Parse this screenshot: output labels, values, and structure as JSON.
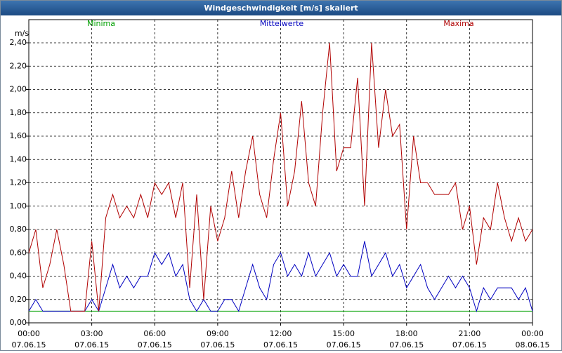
{
  "chart_data": {
    "type": "line",
    "title": "Windgeschwindigkeit [m/s] skaliert",
    "y_label": "m/s",
    "x": [
      0,
      20,
      40,
      60,
      80,
      100,
      120,
      140,
      160,
      180,
      200,
      220,
      240,
      260,
      280,
      300,
      320,
      340,
      360,
      380,
      400,
      420,
      440,
      460,
      480,
      500,
      520,
      540,
      560,
      580,
      600,
      620,
      640,
      660,
      680,
      700,
      720,
      740,
      760,
      780,
      800,
      820,
      840,
      860,
      880,
      900,
      920,
      940,
      960,
      980,
      1000,
      1020,
      1040,
      1060,
      1080,
      1100,
      1120,
      1140,
      1160,
      1180,
      1200,
      1220,
      1240,
      1260,
      1280,
      1300,
      1320,
      1340,
      1360,
      1380,
      1400,
      1420,
      1440
    ],
    "xlim": [
      0,
      1440
    ],
    "xticks": [
      {
        "value": 0,
        "label": "00:00"
      },
      {
        "value": 180,
        "label": "03:00"
      },
      {
        "value": 360,
        "label": "06:00"
      },
      {
        "value": 540,
        "label": "09:00"
      },
      {
        "value": 720,
        "label": "12:00"
      },
      {
        "value": 900,
        "label": "15:00"
      },
      {
        "value": 1080,
        "label": "18:00"
      },
      {
        "value": 1260,
        "label": "21:00"
      },
      {
        "value": 1440,
        "label": "00:00"
      }
    ],
    "xtick_dates": [
      "07.06.15",
      "07.06.15",
      "07.06.15",
      "07.06.15",
      "07.06.15",
      "07.06.15",
      "07.06.15",
      "07.06.15",
      "08.06.15"
    ],
    "ylim": [
      0,
      2.4
    ],
    "yticks": [
      {
        "value": 0,
        "label": "0,00"
      },
      {
        "value": 0.2,
        "label": "0,20"
      },
      {
        "value": 0.4,
        "label": "0,40"
      },
      {
        "value": 0.6,
        "label": "0,60"
      },
      {
        "value": 0.8,
        "label": "0,80"
      },
      {
        "value": 1.0,
        "label": "1,00"
      },
      {
        "value": 1.2,
        "label": "1,20"
      },
      {
        "value": 1.4,
        "label": "1,40"
      },
      {
        "value": 1.6,
        "label": "1,60"
      },
      {
        "value": 1.8,
        "label": "1,80"
      },
      {
        "value": 2.0,
        "label": "2,00"
      },
      {
        "value": 2.2,
        "label": "2,20"
      },
      {
        "value": 2.4,
        "label": "2,40"
      }
    ],
    "grid": true,
    "series": [
      {
        "name": "Minima",
        "color": "#00a000",
        "values": [
          0.1,
          0.1,
          0.1,
          0.1,
          0.1,
          0.1,
          0.1,
          0.1,
          0.1,
          0.1,
          0.1,
          0.1,
          0.1,
          0.1,
          0.1,
          0.1,
          0.1,
          0.1,
          0.1,
          0.1,
          0.1,
          0.1,
          0.1,
          0.1,
          0.1,
          0.1,
          0.1,
          0.1,
          0.1,
          0.1,
          0.1,
          0.1,
          0.1,
          0.1,
          0.1,
          0.1,
          0.1,
          0.1,
          0.1,
          0.1,
          0.1,
          0.1,
          0.1,
          0.1,
          0.1,
          0.1,
          0.1,
          0.1,
          0.1,
          0.1,
          0.1,
          0.1,
          0.1,
          0.1,
          0.1,
          0.1,
          0.1,
          0.1,
          0.1,
          0.1,
          0.1,
          0.1,
          0.1,
          0.1,
          0.1,
          0.1,
          0.1,
          0.1,
          0.1,
          0.1,
          0.1,
          0.1,
          0.1
        ]
      },
      {
        "name": "Mittelwerte",
        "color": "#0000c0",
        "values": [
          0.1,
          0.2,
          0.1,
          0.1,
          0.1,
          0.1,
          0.1,
          0.1,
          0.1,
          0.2,
          0.1,
          0.3,
          0.5,
          0.3,
          0.4,
          0.3,
          0.4,
          0.4,
          0.6,
          0.5,
          0.6,
          0.4,
          0.5,
          0.2,
          0.1,
          0.2,
          0.1,
          0.1,
          0.2,
          0.2,
          0.1,
          0.3,
          0.5,
          0.3,
          0.2,
          0.5,
          0.6,
          0.4,
          0.5,
          0.4,
          0.6,
          0.4,
          0.5,
          0.6,
          0.4,
          0.5,
          0.4,
          0.4,
          0.7,
          0.4,
          0.5,
          0.6,
          0.4,
          0.5,
          0.3,
          0.4,
          0.5,
          0.3,
          0.2,
          0.3,
          0.4,
          0.3,
          0.4,
          0.3,
          0.1,
          0.3,
          0.2,
          0.3,
          0.3,
          0.3,
          0.2,
          0.3,
          0.1
        ]
      },
      {
        "name": "Maxima",
        "color": "#b00000",
        "values": [
          0.6,
          0.8,
          0.3,
          0.5,
          0.8,
          0.5,
          0.1,
          0.1,
          0.1,
          0.7,
          0.1,
          0.9,
          1.1,
          0.9,
          1.0,
          0.9,
          1.1,
          0.9,
          1.2,
          1.1,
          1.2,
          0.9,
          1.2,
          0.3,
          1.1,
          0.2,
          1.0,
          0.7,
          0.9,
          1.3,
          0.9,
          1.3,
          1.6,
          1.1,
          0.9,
          1.4,
          1.8,
          1.0,
          1.3,
          1.9,
          1.2,
          1.0,
          1.8,
          2.4,
          1.3,
          1.5,
          1.5,
          2.1,
          1.0,
          2.4,
          1.5,
          2.0,
          1.6,
          1.7,
          0.8,
          1.6,
          1.2,
          1.2,
          1.1,
          1.1,
          1.1,
          1.2,
          0.8,
          1.0,
          0.5,
          0.9,
          0.8,
          1.2,
          0.9,
          0.7,
          0.9,
          0.7,
          0.8
        ]
      }
    ]
  }
}
